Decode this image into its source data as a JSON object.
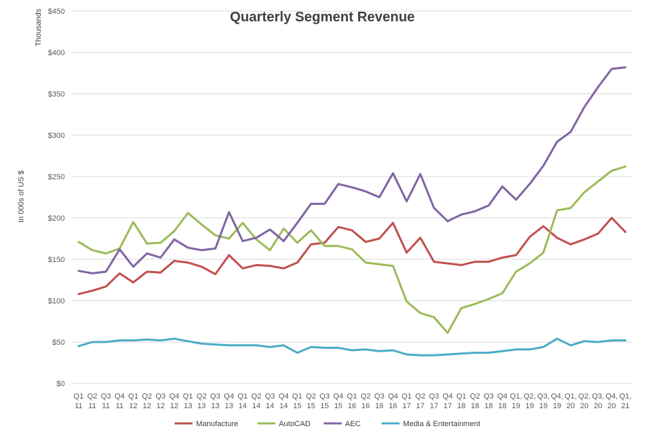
{
  "chart_data": {
    "type": "line",
    "title": "Quarterly Segment Revenue",
    "ylabel": "In 000s of US $",
    "y_units_label": "Thousands",
    "ylim": [
      0,
      450
    ],
    "yticks": [
      "$0",
      "$50",
      "$100",
      "$150",
      "$200",
      "$250",
      "$300",
      "$350",
      "$400",
      "$450"
    ],
    "ytick_values": [
      0,
      50,
      100,
      150,
      200,
      250,
      300,
      350,
      400,
      450
    ],
    "grid": true,
    "legend_position": "bottom",
    "categories": [
      [
        "Q1",
        "11"
      ],
      [
        "Q2",
        "11"
      ],
      [
        "Q3",
        "11"
      ],
      [
        "Q4",
        "11"
      ],
      [
        "Q1",
        "12"
      ],
      [
        "Q2",
        "12"
      ],
      [
        "Q3",
        "12"
      ],
      [
        "Q4",
        "12"
      ],
      [
        "Q1",
        "13"
      ],
      [
        "Q2",
        "13"
      ],
      [
        "Q3",
        "13"
      ],
      [
        "Q4",
        "13"
      ],
      [
        "Q1",
        "14"
      ],
      [
        "Q2",
        "14"
      ],
      [
        "Q3",
        "14"
      ],
      [
        "Q4",
        "14"
      ],
      [
        "Q1",
        "15"
      ],
      [
        "Q2",
        "15"
      ],
      [
        "Q3",
        "15"
      ],
      [
        "Q4",
        "15"
      ],
      [
        "Q1",
        "16"
      ],
      [
        "Q2",
        "16"
      ],
      [
        "Q3",
        "16"
      ],
      [
        "Q4",
        "16"
      ],
      [
        "Q1",
        "17"
      ],
      [
        "Q2",
        "17"
      ],
      [
        "Q3",
        "17"
      ],
      [
        "Q4",
        "17"
      ],
      [
        "Q1",
        "18"
      ],
      [
        "Q2",
        "18"
      ],
      [
        "Q3",
        "18"
      ],
      [
        "Q4",
        "18"
      ],
      [
        "Q1,",
        "19"
      ],
      [
        "Q2,",
        "19"
      ],
      [
        "Q3,",
        "19"
      ],
      [
        "Q4,",
        "19"
      ],
      [
        "Q1,",
        "20"
      ],
      [
        "Q2,",
        "20"
      ],
      [
        "Q3,",
        "20"
      ],
      [
        "Q4,",
        "20"
      ],
      [
        "Q1,",
        "21"
      ]
    ],
    "series": [
      {
        "name": "Manufacture",
        "color": "#c0504d",
        "values": [
          108,
          112,
          117,
          133,
          122,
          135,
          134,
          148,
          146,
          141,
          132,
          155,
          139,
          143,
          142,
          139,
          146,
          168,
          170,
          189,
          185,
          171,
          175,
          194,
          158,
          176,
          147,
          145,
          143,
          147,
          147,
          152,
          155,
          177,
          190,
          176,
          168,
          174,
          181,
          200,
          183
        ]
      },
      {
        "name": "AutoCAD",
        "color": "#9bbb59",
        "values": [
          171,
          161,
          157,
          163,
          195,
          169,
          170,
          184,
          206,
          192,
          179,
          175,
          194,
          174,
          161,
          187,
          170,
          185,
          166,
          166,
          162,
          146,
          144,
          142,
          99,
          85,
          80,
          61,
          91,
          96,
          102,
          109,
          135,
          145,
          158,
          209,
          212,
          231,
          244,
          257,
          262
        ]
      },
      {
        "name": "AEC",
        "color": "#8064a2",
        "values": [
          136,
          133,
          135,
          162,
          141,
          157,
          152,
          174,
          164,
          161,
          163,
          207,
          172,
          176,
          186,
          172,
          194,
          217,
          217,
          241,
          237,
          232,
          225,
          254,
          220,
          253,
          212,
          196,
          204,
          208,
          215,
          238,
          222,
          241,
          263,
          292,
          304,
          334,
          358,
          380,
          382
        ]
      },
      {
        "name": "Media & Entertainment",
        "color": "#4bacc6",
        "values": [
          45,
          50,
          50,
          52,
          52,
          53,
          52,
          54,
          51,
          48,
          47,
          46,
          46,
          46,
          44,
          46,
          37,
          44,
          43,
          43,
          40,
          41,
          39,
          40,
          35,
          34,
          34,
          35,
          36,
          37,
          37,
          39,
          41,
          41,
          44,
          54,
          46,
          51,
          50,
          52,
          52
        ]
      }
    ]
  }
}
